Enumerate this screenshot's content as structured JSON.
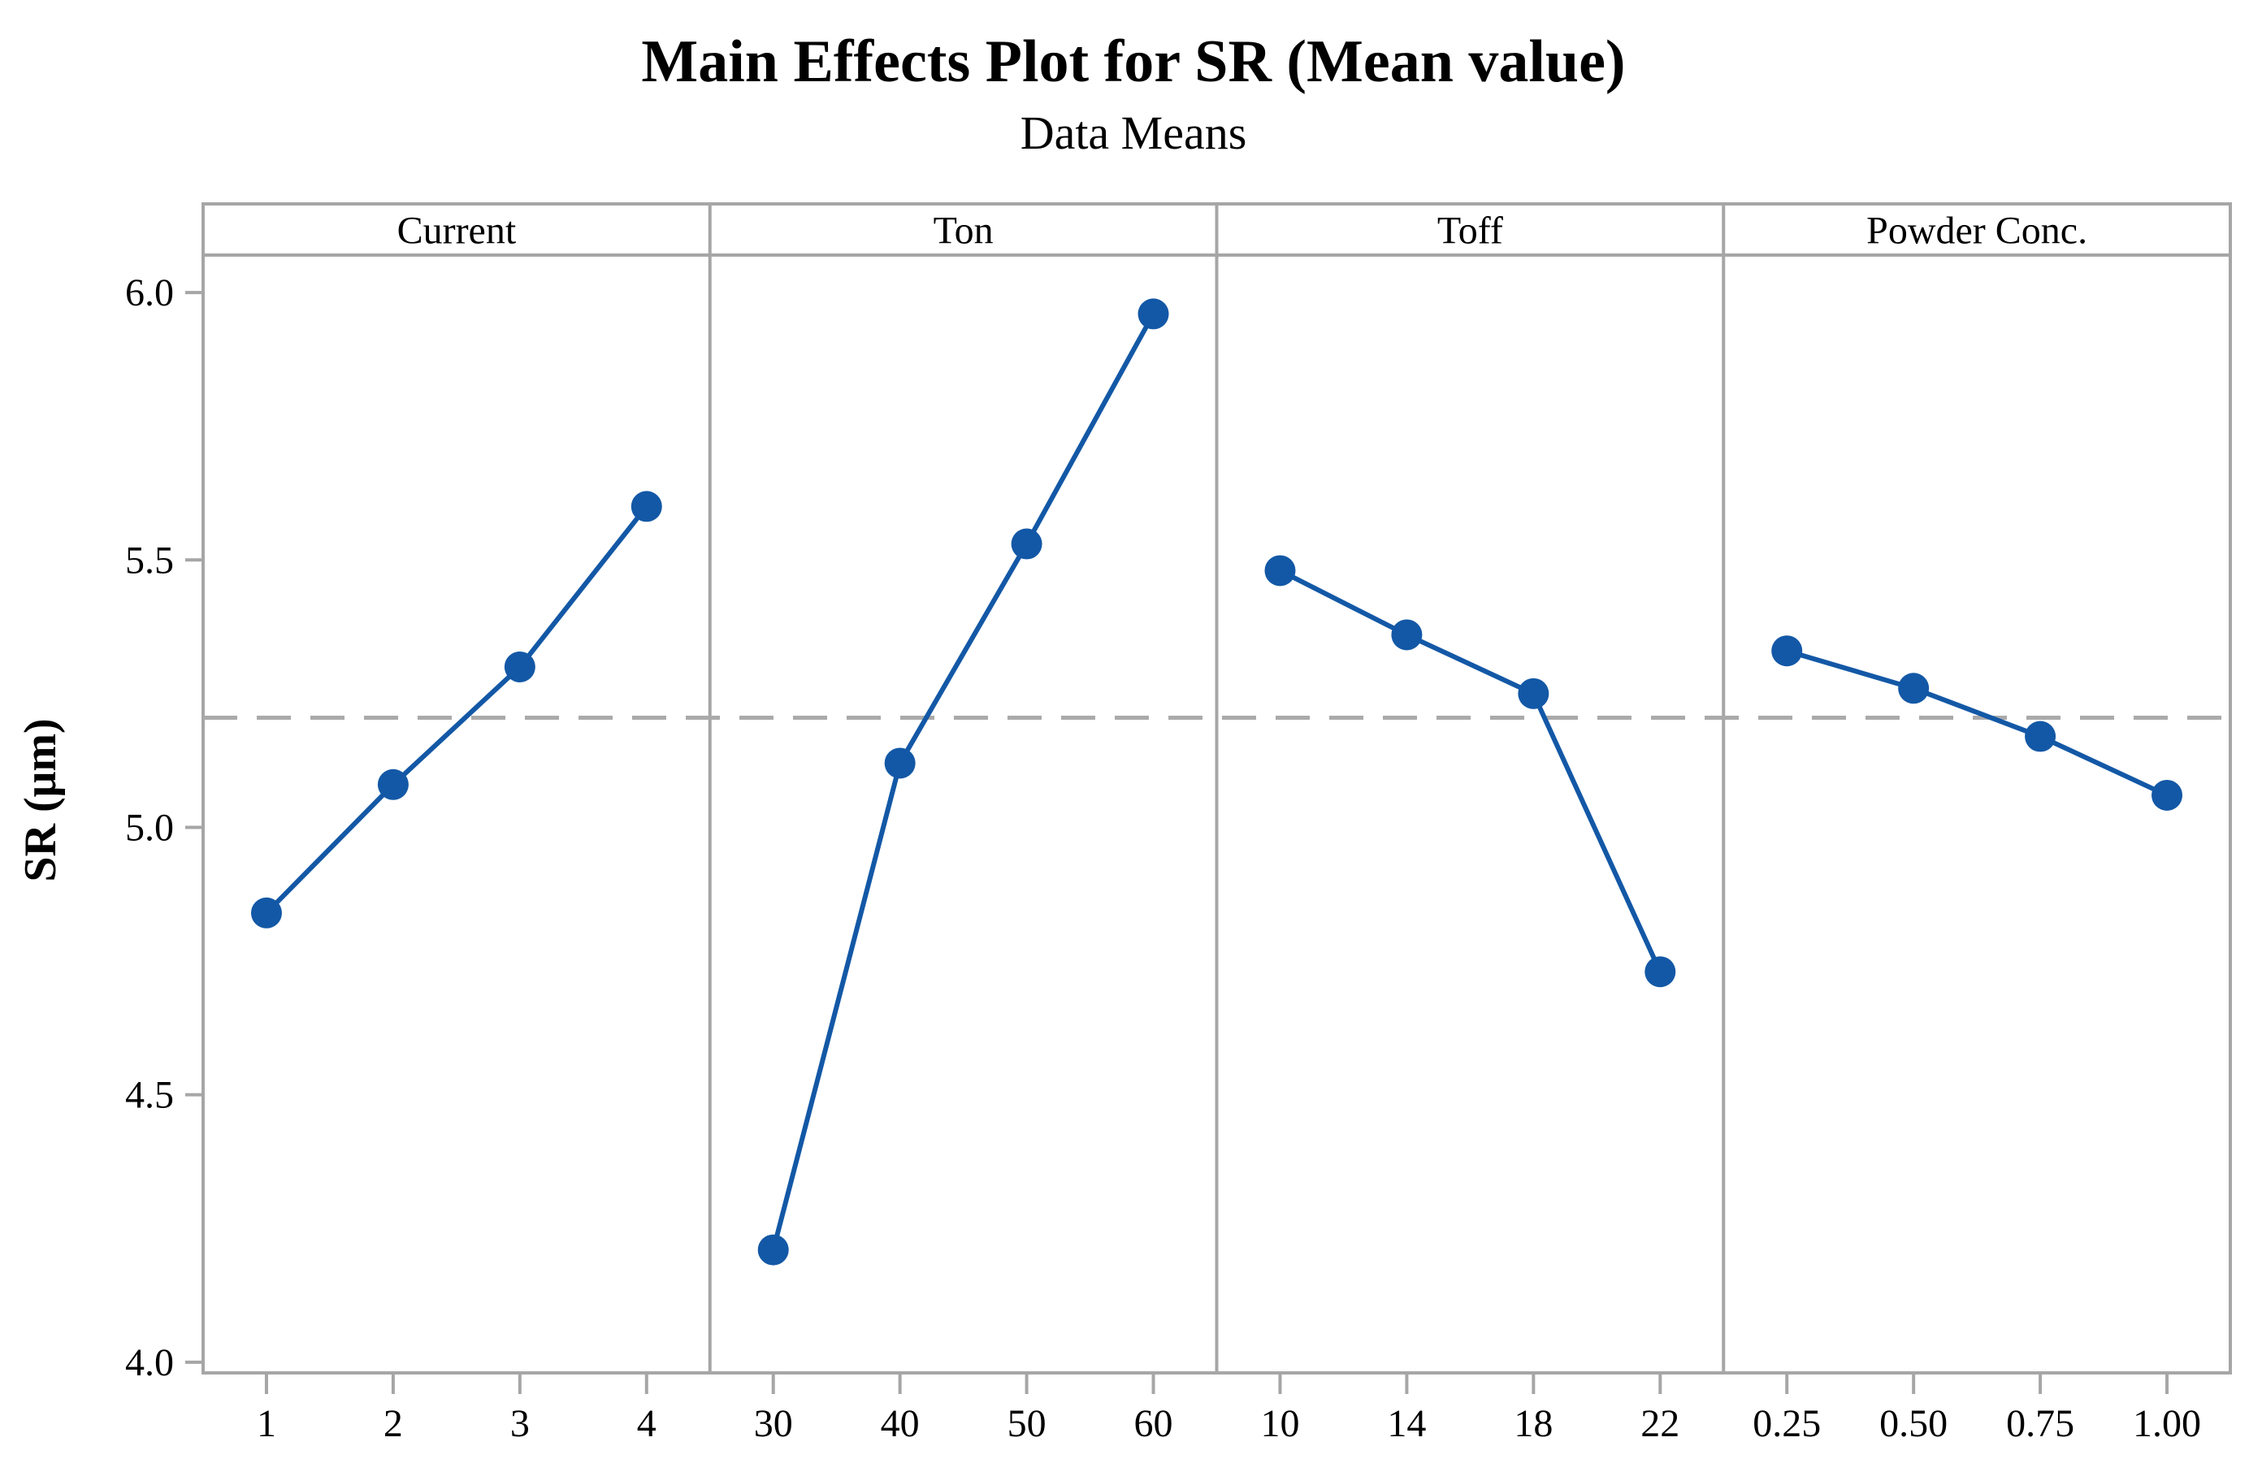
{
  "chart_data": {
    "type": "line",
    "title": "Main Effects Plot for SR (Mean value)",
    "subtitle": "Data Means",
    "ylabel": "SR (μm)",
    "yticks": [
      "6.0",
      "5.5",
      "5.0",
      "4.5",
      "4.0"
    ],
    "ytick_values": [
      6.0,
      5.5,
      5.0,
      4.5,
      4.0
    ],
    "ylim": [
      3.98,
      6.07
    ],
    "mean_line_value": 5.205,
    "mean_line_style": "dashed",
    "legend_position": "none",
    "grid": false,
    "panels": [
      {
        "factor": "Current",
        "categories": [
          "1",
          "2",
          "3",
          "4"
        ],
        "values": [
          4.84,
          5.08,
          5.3,
          5.6
        ]
      },
      {
        "factor": "Ton",
        "categories": [
          "30",
          "40",
          "50",
          "60"
        ],
        "values": [
          4.21,
          5.12,
          5.53,
          5.96
        ]
      },
      {
        "factor": "Toff",
        "categories": [
          "10",
          "14",
          "18",
          "22"
        ],
        "values": [
          5.48,
          5.36,
          5.25,
          4.73
        ]
      },
      {
        "factor": "Powder Conc.",
        "categories": [
          "0.25",
          "0.50",
          "0.75",
          "1.00"
        ],
        "values": [
          5.33,
          5.26,
          5.17,
          5.06
        ]
      }
    ],
    "colors": {
      "series_blue": "#1358a6",
      "border_gray": "#a6a6a6",
      "mean_dash_gray": "#aaaaaa",
      "text_black": "#000000",
      "background": "#ffffff"
    }
  }
}
